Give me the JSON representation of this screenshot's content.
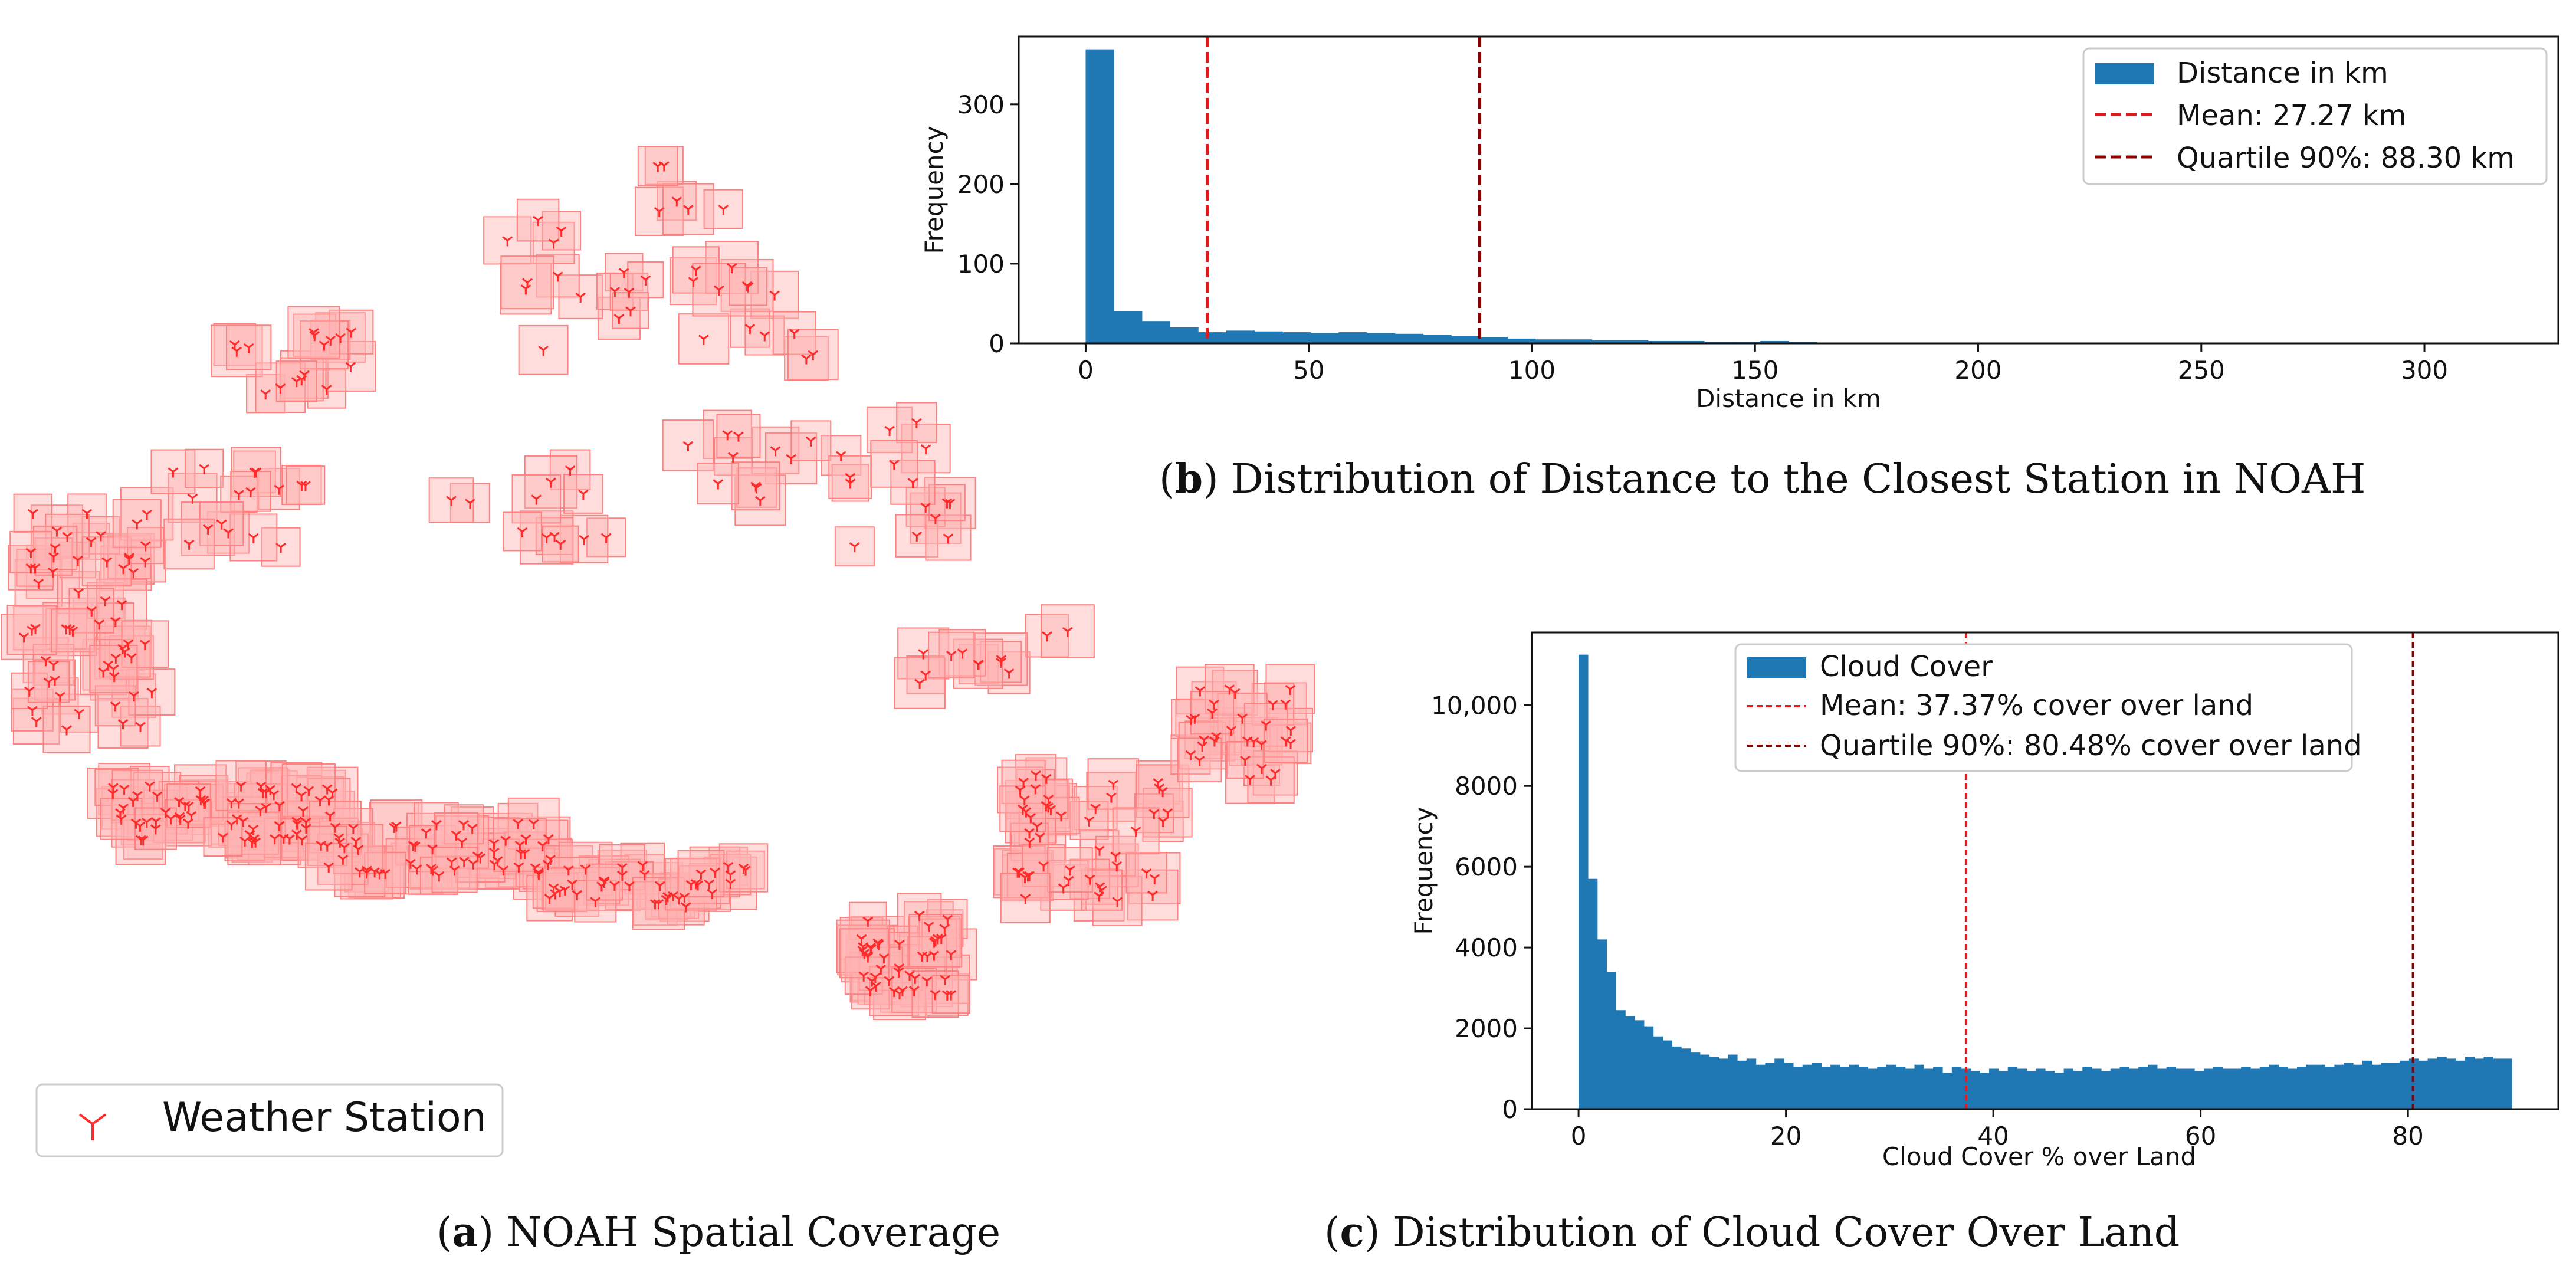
{
  "colors": {
    "bar": "#1f77b4",
    "mean_line": "#e31a1c",
    "q90_line": "#8b0000",
    "station": "#ff2a2a",
    "station_box_fill": "#ffb3b3",
    "station_box_stroke": "#ff8080",
    "coast": "#7a7a7a"
  },
  "panel_a": {
    "caption_letter": "a",
    "caption_text": ") NOAH Spatial Coverage",
    "legend_label": "Weather Station",
    "marker_icon": "tri-down-marker-icon"
  },
  "chart_data": [
    {
      "id": "b",
      "type": "bar",
      "title": "",
      "caption_letter": "b",
      "caption_text": ") Distribution of Distance to the Closest Station in NOAH",
      "xlabel": "Distance in km",
      "ylabel": "Frequency",
      "xlim": [
        -15,
        330
      ],
      "ylim": [
        0,
        385
      ],
      "xticks": [
        0,
        50,
        100,
        150,
        200,
        250,
        300
      ],
      "yticks": [
        0,
        100,
        200,
        300
      ],
      "bin_start": 0,
      "bin_width": 6.3,
      "values": [
        369,
        40,
        28,
        20,
        14,
        16,
        15,
        14,
        13,
        14,
        13,
        12,
        11,
        9,
        8,
        6,
        5,
        5,
        4,
        4,
        3,
        3,
        2,
        2,
        3,
        2,
        1,
        1,
        1,
        1,
        1,
        1,
        1,
        1,
        0,
        1,
        0,
        0,
        0,
        0,
        0,
        0,
        0,
        0,
        0,
        0,
        0,
        0,
        0,
        0
      ],
      "series_name": "Distance in km",
      "lines": [
        {
          "name": "Mean: 27.27 km",
          "x": 27.27,
          "style": "mean"
        },
        {
          "name": "Quartile 90%: 88.30 km",
          "x": 88.3,
          "style": "q90"
        }
      ],
      "legend_position": "top-right"
    },
    {
      "id": "c",
      "type": "bar",
      "title": "",
      "caption_letter": "c",
      "caption_text": ") Distribution of Cloud Cover Over Land",
      "xlabel": "Cloud Cover % over Land",
      "ylabel": "Frequency",
      "xlim": [
        -4.5,
        94.5
      ],
      "ylim": [
        0,
        11800
      ],
      "xticks": [
        0,
        20,
        40,
        60,
        80
      ],
      "yticks": [
        0,
        2000,
        4000,
        6000,
        8000,
        10000
      ],
      "ytick_labels": [
        "0",
        "2000",
        "4000",
        "6000",
        "8000",
        "10,000"
      ],
      "bin_start": 0,
      "bin_width": 0.9,
      "values": [
        11250,
        5700,
        4200,
        3400,
        2450,
        2300,
        2200,
        2050,
        1800,
        1700,
        1550,
        1500,
        1400,
        1350,
        1300,
        1250,
        1350,
        1200,
        1250,
        1100,
        1150,
        1250,
        1150,
        1050,
        1100,
        1150,
        1050,
        1100,
        1050,
        1100,
        1050,
        1000,
        1050,
        1100,
        1050,
        1000,
        1100,
        1000,
        1050,
        900,
        1050,
        1000,
        950,
        900,
        1000,
        950,
        1050,
        1000,
        950,
        1000,
        950,
        900,
        1000,
        950,
        1050,
        1000,
        950,
        1000,
        1050,
        1000,
        1050,
        1100,
        1000,
        1050,
        1000,
        1000,
        950,
        1000,
        1050,
        1000,
        1000,
        1050,
        1000,
        1050,
        1100,
        1050,
        1000,
        1050,
        1100,
        1100,
        1050,
        1100,
        1150,
        1100,
        1200,
        1100,
        1150,
        1150,
        1200,
        1250,
        1200,
        1250,
        1300,
        1250,
        1200,
        1300,
        1250,
        1300,
        1250,
        1250
      ],
      "series_name": "Cloud Cover",
      "lines": [
        {
          "name": "Mean: 37.37% cover over land",
          "x": 37.37,
          "style": "mean"
        },
        {
          "name": "Quartile 90%: 80.48% cover over land",
          "x": 80.48,
          "style": "q90"
        }
      ],
      "legend_position": "top-center"
    }
  ]
}
